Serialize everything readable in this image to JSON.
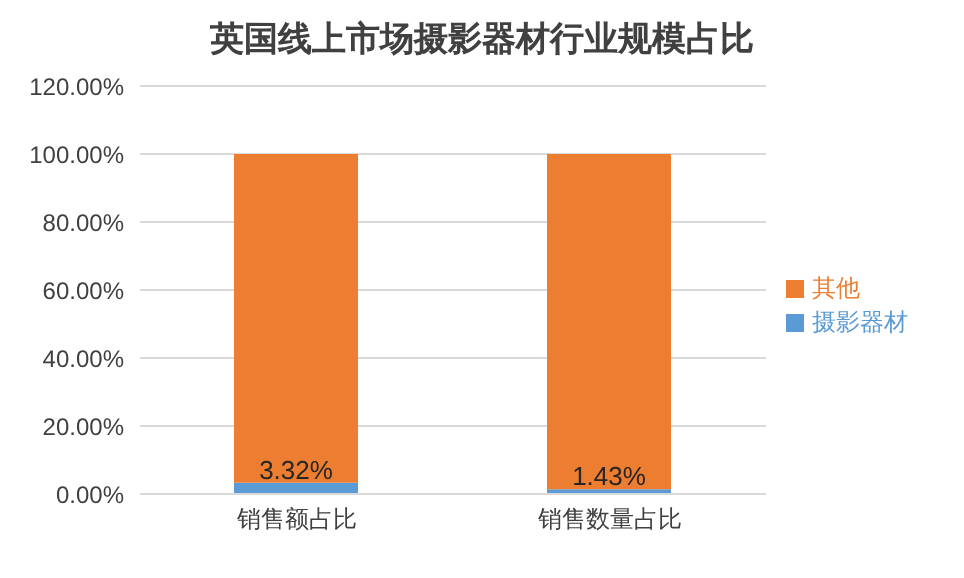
{
  "chart_data": {
    "type": "bar",
    "title": "英国线上市场摄影器材行业规模占比",
    "categories": [
      "销售额占比",
      "销售数量占比"
    ],
    "stacked": true,
    "series": [
      {
        "name": "摄影器材",
        "color": "#5b9bd5",
        "values": [
          3.32,
          1.43
        ],
        "value_labels": [
          "3.32%",
          "1.43%"
        ]
      },
      {
        "name": "其他",
        "color": "#ed7d31",
        "values": [
          96.68,
          98.57
        ]
      }
    ],
    "ylim": [
      0,
      120
    ],
    "yticks": [
      {
        "value": 0,
        "label": "0.00%"
      },
      {
        "value": 20,
        "label": "20.00%"
      },
      {
        "value": 40,
        "label": "40.00%"
      },
      {
        "value": 60,
        "label": "60.00%"
      },
      {
        "value": 80,
        "label": "80.00%"
      },
      {
        "value": 100,
        "label": "100.00%"
      },
      {
        "value": 120,
        "label": "120.00%"
      }
    ],
    "grid": "y",
    "legend": "right"
  }
}
